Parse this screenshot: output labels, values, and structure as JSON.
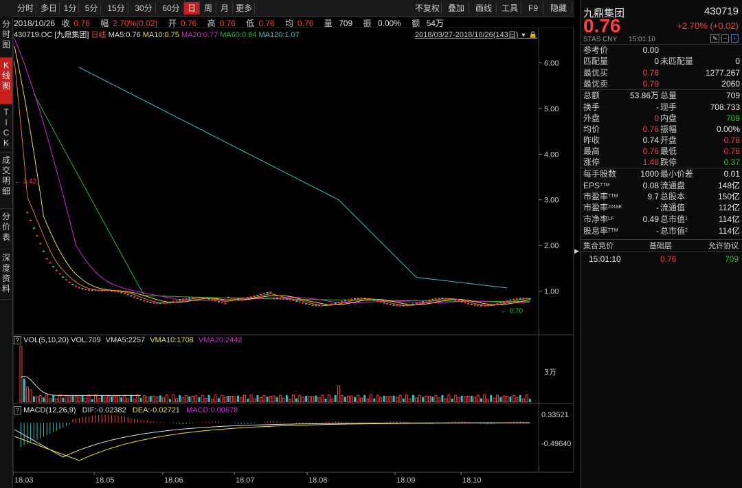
{
  "toolbar": {
    "left": [
      "分时",
      "多日",
      "1分",
      "5分",
      "15分",
      "30分",
      "60分",
      "日",
      "周",
      "月",
      "更多"
    ],
    "active": "日",
    "right": [
      "不复权",
      "叠加",
      "画线",
      "工具",
      "F9",
      "隐藏"
    ]
  },
  "info": {
    "date": "2018/10/26",
    "close_label": "收",
    "close": "0.76",
    "change_label": "幅",
    "change": "2.70%(0.02)",
    "open_label": "开",
    "open": "0.76",
    "high_label": "高",
    "high": "0.76",
    "low_label": "低",
    "low": "0.76",
    "avg_label": "均",
    "avg": "0.76",
    "vol_label": "量",
    "vol": "709",
    "amp_label": "振",
    "amp": "0.00%",
    "amt_label": "额",
    "amt": "54万"
  },
  "left_tabs": [
    "分时图",
    "K线图",
    "TICK",
    "成交明细",
    "分价表",
    "深度资料"
  ],
  "left_tab_active": "K线图",
  "kline": {
    "code": "430719.OC [九鼎集团]",
    "period": "日线",
    "ma5": "MA5:0.76",
    "ma10": "MA10:0.75",
    "ma20": "MA20:0.77",
    "ma60": "MA60:0.84",
    "ma120": "MA120:1.07",
    "range": "2018/03/27-2018/10/26(143日)",
    "yticks": [
      "6.00",
      "5.00",
      "4.00",
      "3.00",
      "2.00",
      "1.00"
    ],
    "max_label": "3.42",
    "min_label": "0.70"
  },
  "volume": {
    "label": "VOL(5,10,20) VOL:709",
    "vma5": "VMA5:2257",
    "vma10": "VMA10:1708",
    "vma20": "VMA20:2442",
    "ytick": "3万"
  },
  "macd": {
    "label": "MACD(12,26,9)",
    "dif": "DIF:-0.02382",
    "dea": "DEA:-0.02721",
    "macd": "MACD:0.00678",
    "ytop": "0.33521",
    "ybot": "-0.49640"
  },
  "xaxis": [
    "18.03",
    "18.05",
    "18.06",
    "18.07",
    "18.08",
    "18.09",
    "18.10"
  ],
  "colors": {
    "up": "#ff3d3d",
    "down": "#1ec8c8",
    "ma5": "#e0e0e0",
    "ma10": "#f0e020",
    "ma20": "#e020e0",
    "ma60": "#20c020",
    "ma120": "#40c0c8"
  },
  "panel": {
    "name": "九鼎集团",
    "code": "430719",
    "price": "0.76",
    "change": "+2.70% (+0.02)",
    "sub": "STAS  CNY",
    "time": "15:01:10",
    "rows": [
      [
        "参考价",
        "0.00",
        "",
        ""
      ],
      [
        "匹配量",
        "0",
        "未匹配量",
        "0"
      ],
      [
        "最优买",
        "0.76",
        "",
        "1277.267"
      ],
      [
        "最优卖",
        "0.79",
        "",
        "2060"
      ],
      [
        "总额",
        "53.86万",
        "总量",
        "709"
      ],
      [
        "换手",
        "-",
        "现手",
        "708.733"
      ],
      [
        "外盘",
        "0",
        "内盘",
        "709"
      ],
      [
        "均价",
        "0.76",
        "振幅",
        "0.00%"
      ],
      [
        "昨收",
        "0.74",
        "开盘",
        "0.76"
      ],
      [
        "最高",
        "0.76",
        "最低",
        "0.76"
      ],
      [
        "涨停",
        "1.48",
        "跌停",
        "0.37"
      ],
      [
        "每手股数",
        "1000",
        "最小价差",
        "0.01"
      ],
      [
        "EPS",
        "0.08",
        "流通盘",
        "148亿"
      ],
      [
        "市盈率",
        "9.7",
        "总股本",
        "150亿"
      ],
      [
        "市盈率",
        "-",
        "流通值",
        "112亿"
      ],
      [
        "市净率",
        "0.49",
        "总市值",
        "114亿"
      ],
      [
        "股息率",
        "-",
        "总市值",
        "114亿"
      ]
    ],
    "sup": [
      "TTM",
      "TTM",
      "2018E",
      "LF",
      "TTM"
    ],
    "sup_right": [
      "1",
      "2"
    ],
    "footer": [
      "集合竞价",
      "基础层",
      "允许协议"
    ],
    "tick_time": "15:01:10",
    "tick_price": "0.76",
    "tick_vol": "709"
  }
}
